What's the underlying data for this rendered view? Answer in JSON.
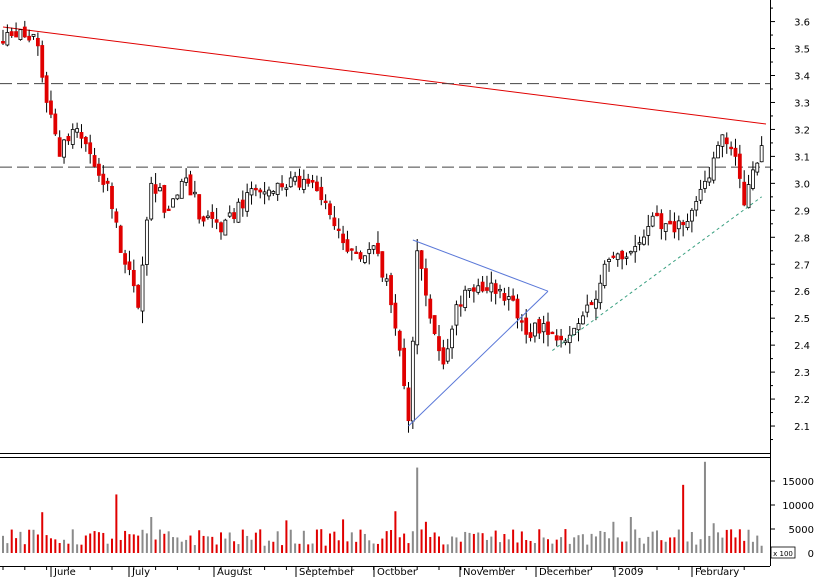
{
  "chart_data": [
    {
      "type": "candlestick",
      "panel": "price",
      "yaxis": {
        "ticks": [
          2.1,
          2.2,
          2.3,
          2.4,
          2.5,
          2.6,
          2.7,
          2.8,
          2.9,
          3.0,
          3.1,
          3.2,
          3.3,
          3.4,
          3.5,
          3.6
        ],
        "ylim": [
          2.0,
          3.68
        ],
        "side": "right"
      },
      "xaxis": {
        "labels": [
          "June",
          "July",
          "August",
          "September",
          "October",
          "November",
          "December",
          "2009",
          "February"
        ]
      },
      "grid": false,
      "colors": {
        "up": "#ffffff",
        "down": "#e00000",
        "outline": "#000000"
      },
      "series": [
        {
          "keypoints": [
            {
              "day": 0,
              "close": 3.52
            },
            {
              "day": 4,
              "close": 3.57
            },
            {
              "day": 8,
              "close": 3.51
            },
            {
              "day": 10,
              "close": 3.3
            },
            {
              "day": 13,
              "close": 3.1
            },
            {
              "day": 16,
              "close": 3.2
            },
            {
              "day": 20,
              "close": 3.11
            },
            {
              "day": 24,
              "close": 3.0
            },
            {
              "day": 28,
              "close": 2.7
            },
            {
              "day": 31,
              "close": 2.54
            },
            {
              "day": 34,
              "close": 3.0
            },
            {
              "day": 38,
              "close": 2.9
            },
            {
              "day": 42,
              "close": 3.02
            },
            {
              "day": 46,
              "close": 2.86
            },
            {
              "day": 50,
              "close": 2.82
            },
            {
              "day": 54,
              "close": 2.93
            },
            {
              "day": 58,
              "close": 2.98
            },
            {
              "day": 62,
              "close": 2.97
            },
            {
              "day": 66,
              "close": 3.02
            },
            {
              "day": 70,
              "close": 3.0
            },
            {
              "day": 74,
              "close": 2.93
            },
            {
              "day": 78,
              "close": 2.78
            },
            {
              "day": 82,
              "close": 2.72
            },
            {
              "day": 86,
              "close": 2.74
            },
            {
              "day": 89,
              "close": 2.55
            },
            {
              "day": 92,
              "close": 2.25
            },
            {
              "day": 93,
              "close": 2.12
            },
            {
              "day": 95,
              "close": 2.75
            },
            {
              "day": 98,
              "close": 2.5
            },
            {
              "day": 101,
              "close": 2.33
            },
            {
              "day": 104,
              "close": 2.55
            },
            {
              "day": 108,
              "close": 2.6
            },
            {
              "day": 112,
              "close": 2.63
            },
            {
              "day": 116,
              "close": 2.58
            },
            {
              "day": 120,
              "close": 2.44
            },
            {
              "day": 124,
              "close": 2.48
            },
            {
              "day": 128,
              "close": 2.42
            },
            {
              "day": 132,
              "close": 2.48
            },
            {
              "day": 135,
              "close": 2.55
            },
            {
              "day": 138,
              "close": 2.7
            },
            {
              "day": 142,
              "close": 2.72
            },
            {
              "day": 146,
              "close": 2.78
            },
            {
              "day": 150,
              "close": 2.88
            },
            {
              "day": 154,
              "close": 2.82
            },
            {
              "day": 158,
              "close": 2.9
            },
            {
              "day": 162,
              "close": 3.02
            },
            {
              "day": 165,
              "close": 3.18
            },
            {
              "day": 168,
              "close": 3.1
            },
            {
              "day": 170,
              "close": 2.92
            },
            {
              "day": 172,
              "close": 3.05
            },
            {
              "day": 174,
              "close": 3.14
            }
          ]
        }
      ],
      "annotations": [
        {
          "kind": "trendline",
          "color": "#e00000",
          "style": "solid",
          "from": {
            "day": 0,
            "price": 3.58
          },
          "to": {
            "day": 175,
            "price": 3.22
          }
        },
        {
          "kind": "hline",
          "color": "#444444",
          "style": "dashed",
          "price": 3.37
        },
        {
          "kind": "hline",
          "color": "#444444",
          "style": "dashed",
          "price": 3.06
        },
        {
          "kind": "trendline",
          "color": "#5a78d8",
          "style": "solid",
          "from": {
            "day": 93,
            "price": 2.1
          },
          "to": {
            "day": 125,
            "price": 2.6
          }
        },
        {
          "kind": "trendline",
          "color": "#5a78d8",
          "style": "solid",
          "from": {
            "day": 94,
            "price": 2.79
          },
          "to": {
            "day": 125,
            "price": 2.6
          }
        },
        {
          "kind": "trendline",
          "color": "#3aa080",
          "style": "dotted",
          "from": {
            "day": 126,
            "price": 2.38
          },
          "to": {
            "day": 174,
            "price": 2.95
          }
        }
      ]
    },
    {
      "type": "bar",
      "panel": "volume",
      "yaxis": {
        "ticks": [
          "0",
          "5000",
          "10000",
          "15000"
        ],
        "ylim": [
          0,
          20000
        ],
        "side": "right",
        "unit_label": "x 100"
      },
      "grid": false,
      "spikes": [
        {
          "day": 9,
          "value": 8500
        },
        {
          "day": 26,
          "value": 12200
        },
        {
          "day": 34,
          "value": 7500
        },
        {
          "day": 65,
          "value": 6800
        },
        {
          "day": 78,
          "value": 7000
        },
        {
          "day": 90,
          "value": 8700
        },
        {
          "day": 95,
          "value": 17800
        },
        {
          "day": 97,
          "value": 6500
        },
        {
          "day": 140,
          "value": 6500
        },
        {
          "day": 144,
          "value": 7500
        },
        {
          "day": 156,
          "value": 14200
        },
        {
          "day": 161,
          "value": 19000
        },
        {
          "day": 163,
          "value": 6200
        }
      ]
    }
  ]
}
